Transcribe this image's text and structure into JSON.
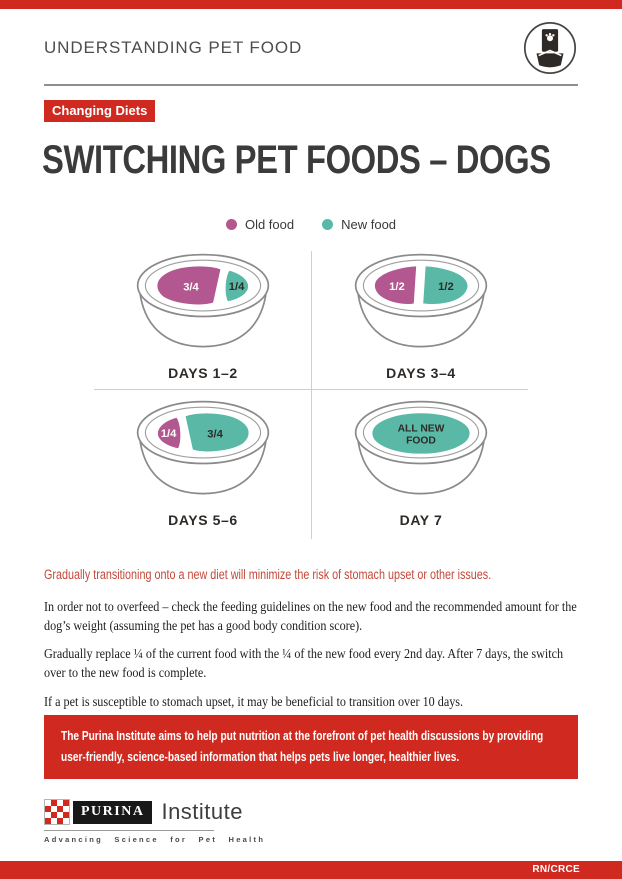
{
  "header": {
    "title": "UNDERSTANDING PET FOOD",
    "icon": "pet-food-bag-icon"
  },
  "badge": "Changing Diets",
  "title": "SWITCHING PET FOODS – DOGS",
  "legend": [
    {
      "label": "Old food",
      "color": "#b2578f"
    },
    {
      "label": "New food",
      "color": "#59b8a6"
    }
  ],
  "diagram": {
    "bowls": [
      {
        "label": "DAYS 1–2",
        "portions": [
          {
            "lines": [
              "3/4"
            ],
            "food": "old",
            "shape": "large-left"
          },
          {
            "lines": [
              "1/4"
            ],
            "food": "new",
            "shape": "small-right"
          }
        ]
      },
      {
        "label": "DAYS 3–4",
        "portions": [
          {
            "lines": [
              "1/2"
            ],
            "food": "old",
            "shape": "half-left"
          },
          {
            "lines": [
              "1/2"
            ],
            "food": "new",
            "shape": "half-right"
          }
        ]
      },
      {
        "label": "DAYS 5–6",
        "portions": [
          {
            "lines": [
              "1/4"
            ],
            "food": "old",
            "shape": "small-left"
          },
          {
            "lines": [
              "3/4"
            ],
            "food": "new",
            "shape": "large-right"
          }
        ]
      },
      {
        "label": "DAY 7",
        "portions": [
          {
            "lines": [
              "ALL NEW",
              "FOOD"
            ],
            "food": "new",
            "shape": "full"
          }
        ]
      }
    ]
  },
  "highlight": "Gradually transitioning onto a new diet will minimize the risk of stomach upset or other issues.",
  "paragraphs": [
    "In order not to overfeed – check the feeding guidelines on the new food and the recommended amount for the dog’s weight (assuming the pet has a good body condition score).",
    "Gradually replace ¼ of the current food with the ¼ of the new food every 2nd day. After 7 days, the switch over to the new food is complete.",
    "If a pet is susceptible to stomach upset, it may be beneficial to transition over 10 days."
  ],
  "callout": "The Purina Institute aims to help put nutrition at the forefront of pet health discussions by providing user-friendly, science-based information that helps pets live longer, healthier lives.",
  "logo": {
    "brand": "PURINA",
    "name": "Institute",
    "tagline": "Advancing Science for Pet Health"
  },
  "footer_code": "RN/CRCE",
  "colors": {
    "red": "#d02a20",
    "red_text": "#c4493a",
    "old_food": "#b2578f",
    "new_food": "#59b8a6",
    "ink": "#2e2a27",
    "bowl_line": "#8a8a8a"
  }
}
